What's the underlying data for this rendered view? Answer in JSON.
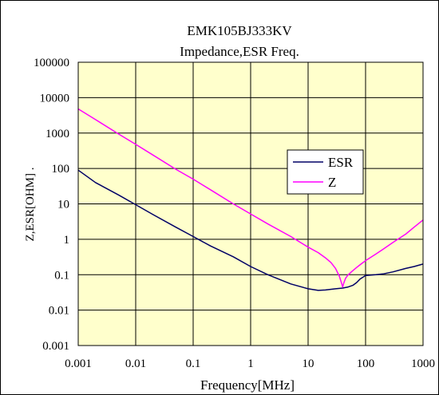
{
  "chart_data": {
    "type": "line",
    "title": "EMK105BJ333KV",
    "subtitle": "Impedance,ESR Freq.",
    "xlabel": "Frequency[MHz]",
    "ylabel": "Z,ESR[OHM] .",
    "xscale": "log",
    "yscale": "log",
    "xlim": [
      0.001,
      1000
    ],
    "ylim": [
      0.001,
      100000
    ],
    "x_ticks": [
      0.001,
      0.01,
      0.1,
      1,
      10,
      100,
      1000
    ],
    "x_tick_labels": [
      "0.001",
      "0.01",
      "0.1",
      "1",
      "10",
      "100",
      "1000"
    ],
    "y_ticks": [
      0.001,
      0.01,
      0.1,
      1,
      10,
      100,
      1000,
      10000,
      100000
    ],
    "y_tick_labels": [
      "0.001",
      "0.01",
      "0.1",
      "1",
      "10",
      "100",
      "1000",
      "10000",
      "100000"
    ],
    "grid": true,
    "legend": "right",
    "plot_background": "#ffffcc",
    "series": [
      {
        "name": "ESR",
        "color": "#000066",
        "x": [
          0.001,
          0.002,
          0.005,
          0.01,
          0.02,
          0.05,
          0.1,
          0.2,
          0.5,
          1,
          2,
          5,
          10,
          15,
          20,
          30,
          40,
          50,
          60,
          70,
          80,
          100,
          150,
          200,
          300,
          500,
          700,
          1000
        ],
        "y": [
          90,
          40,
          18,
          9.5,
          5,
          2.2,
          1.2,
          0.65,
          0.32,
          0.17,
          0.1,
          0.055,
          0.04,
          0.036,
          0.037,
          0.04,
          0.042,
          0.045,
          0.05,
          0.06,
          0.075,
          0.095,
          0.1,
          0.105,
          0.12,
          0.15,
          0.17,
          0.2
        ]
      },
      {
        "name": "Z",
        "color": "#ff00ff",
        "x": [
          0.001,
          0.002,
          0.005,
          0.01,
          0.02,
          0.05,
          0.1,
          0.2,
          0.5,
          1,
          2,
          5,
          10,
          15,
          20,
          25,
          30,
          35,
          38,
          40,
          42,
          45,
          50,
          60,
          70,
          80,
          100,
          150,
          200,
          300,
          500,
          700,
          1000
        ],
        "y": [
          4800,
          2400,
          950,
          480,
          240,
          95,
          50,
          25,
          10,
          5.2,
          2.7,
          1.2,
          0.6,
          0.42,
          0.3,
          0.22,
          0.15,
          0.09,
          0.06,
          0.045,
          0.06,
          0.08,
          0.1,
          0.13,
          0.16,
          0.19,
          0.25,
          0.38,
          0.52,
          0.82,
          1.4,
          2.2,
          3.5
        ]
      }
    ]
  }
}
